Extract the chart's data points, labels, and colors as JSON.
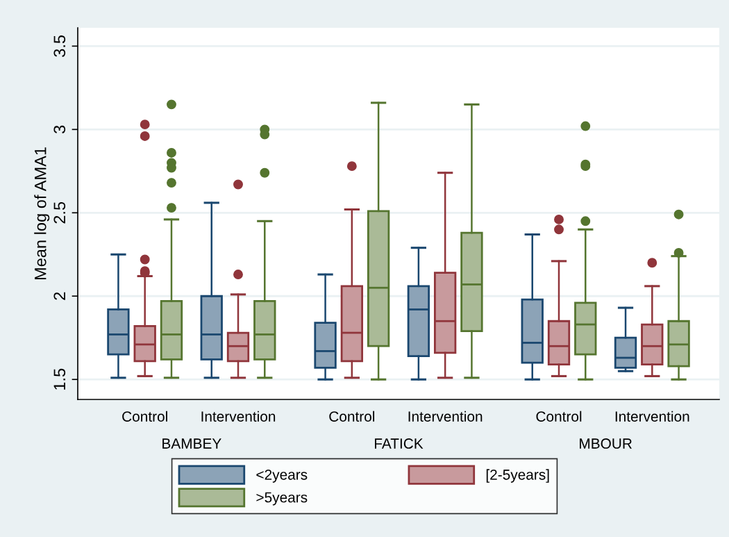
{
  "chart_data": {
    "type": "box",
    "ylabel": "Mean log of AMA1",
    "categories": [
      "Control",
      "Intervention",
      "Control",
      "Intervention",
      "Control",
      "Intervention"
    ],
    "annotations": [
      "BAMBEY",
      "FATICK",
      "MBOUR"
    ],
    "ylim": [
      1.38,
      3.61
    ],
    "yticks": [
      1.5,
      2,
      2.5,
      3,
      3.5
    ],
    "grid": "y",
    "legend": "bottom",
    "series": [
      {
        "name": "<2years",
        "color": "#1a476f",
        "boxes": [
          {
            "low": 1.51,
            "q1": 1.65,
            "median": 1.77,
            "q3": 1.92,
            "high": 2.25
          },
          {
            "low": 1.51,
            "q1": 1.62,
            "median": 1.77,
            "q3": 2.0,
            "high": 2.56
          },
          {
            "low": 1.5,
            "q1": 1.57,
            "median": 1.67,
            "q3": 1.84,
            "high": 2.13
          },
          {
            "low": 1.5,
            "q1": 1.64,
            "median": 1.92,
            "q3": 2.06,
            "high": 2.29
          },
          {
            "low": 1.5,
            "q1": 1.6,
            "median": 1.72,
            "q3": 1.98,
            "high": 2.37
          },
          {
            "low": 1.55,
            "q1": 1.57,
            "median": 1.63,
            "q3": 1.75,
            "high": 1.93
          }
        ]
      },
      {
        "name": "[2-5years]",
        "color": "#90353b",
        "boxes": [
          {
            "low": 1.52,
            "q1": 1.61,
            "median": 1.71,
            "q3": 1.82,
            "high": 2.12,
            "outliers": [
              3.03,
              2.96,
              2.22,
              2.15,
              2.14
            ]
          },
          {
            "low": 1.51,
            "q1": 1.61,
            "median": 1.7,
            "q3": 1.78,
            "high": 2.01,
            "outliers": [
              2.67,
              2.13
            ]
          },
          {
            "low": 1.51,
            "q1": 1.61,
            "median": 1.78,
            "q3": 2.06,
            "high": 2.52,
            "outliers": [
              2.78
            ]
          },
          {
            "low": 1.51,
            "q1": 1.66,
            "median": 1.85,
            "q3": 2.14,
            "high": 2.74
          },
          {
            "low": 1.52,
            "q1": 1.59,
            "median": 1.7,
            "q3": 1.85,
            "high": 2.21,
            "outliers": [
              2.46,
              2.4
            ]
          },
          {
            "low": 1.52,
            "q1": 1.59,
            "median": 1.7,
            "q3": 1.83,
            "high": 2.06,
            "outliers": [
              2.2
            ]
          }
        ]
      },
      {
        "name": ">5years",
        "color": "#55752f",
        "boxes": [
          {
            "low": 1.51,
            "q1": 1.62,
            "median": 1.77,
            "q3": 1.97,
            "high": 2.46,
            "outliers": [
              3.15,
              2.86,
              2.8,
              2.77,
              2.68,
              2.53
            ]
          },
          {
            "low": 1.51,
            "q1": 1.62,
            "median": 1.77,
            "q3": 1.97,
            "high": 2.45,
            "outliers": [
              3.0,
              2.97,
              2.74
            ]
          },
          {
            "low": 1.5,
            "q1": 1.7,
            "median": 2.05,
            "q3": 2.51,
            "high": 3.16
          },
          {
            "low": 1.51,
            "q1": 1.79,
            "median": 2.07,
            "q3": 2.38,
            "high": 3.15
          },
          {
            "low": 1.5,
            "q1": 1.65,
            "median": 1.83,
            "q3": 1.96,
            "high": 2.4,
            "outliers": [
              3.02,
              2.79,
              2.78,
              2.45
            ]
          },
          {
            "low": 1.5,
            "q1": 1.58,
            "median": 1.71,
            "q3": 1.85,
            "high": 2.24,
            "outliers": [
              2.49,
              2.26
            ]
          }
        ]
      }
    ]
  }
}
